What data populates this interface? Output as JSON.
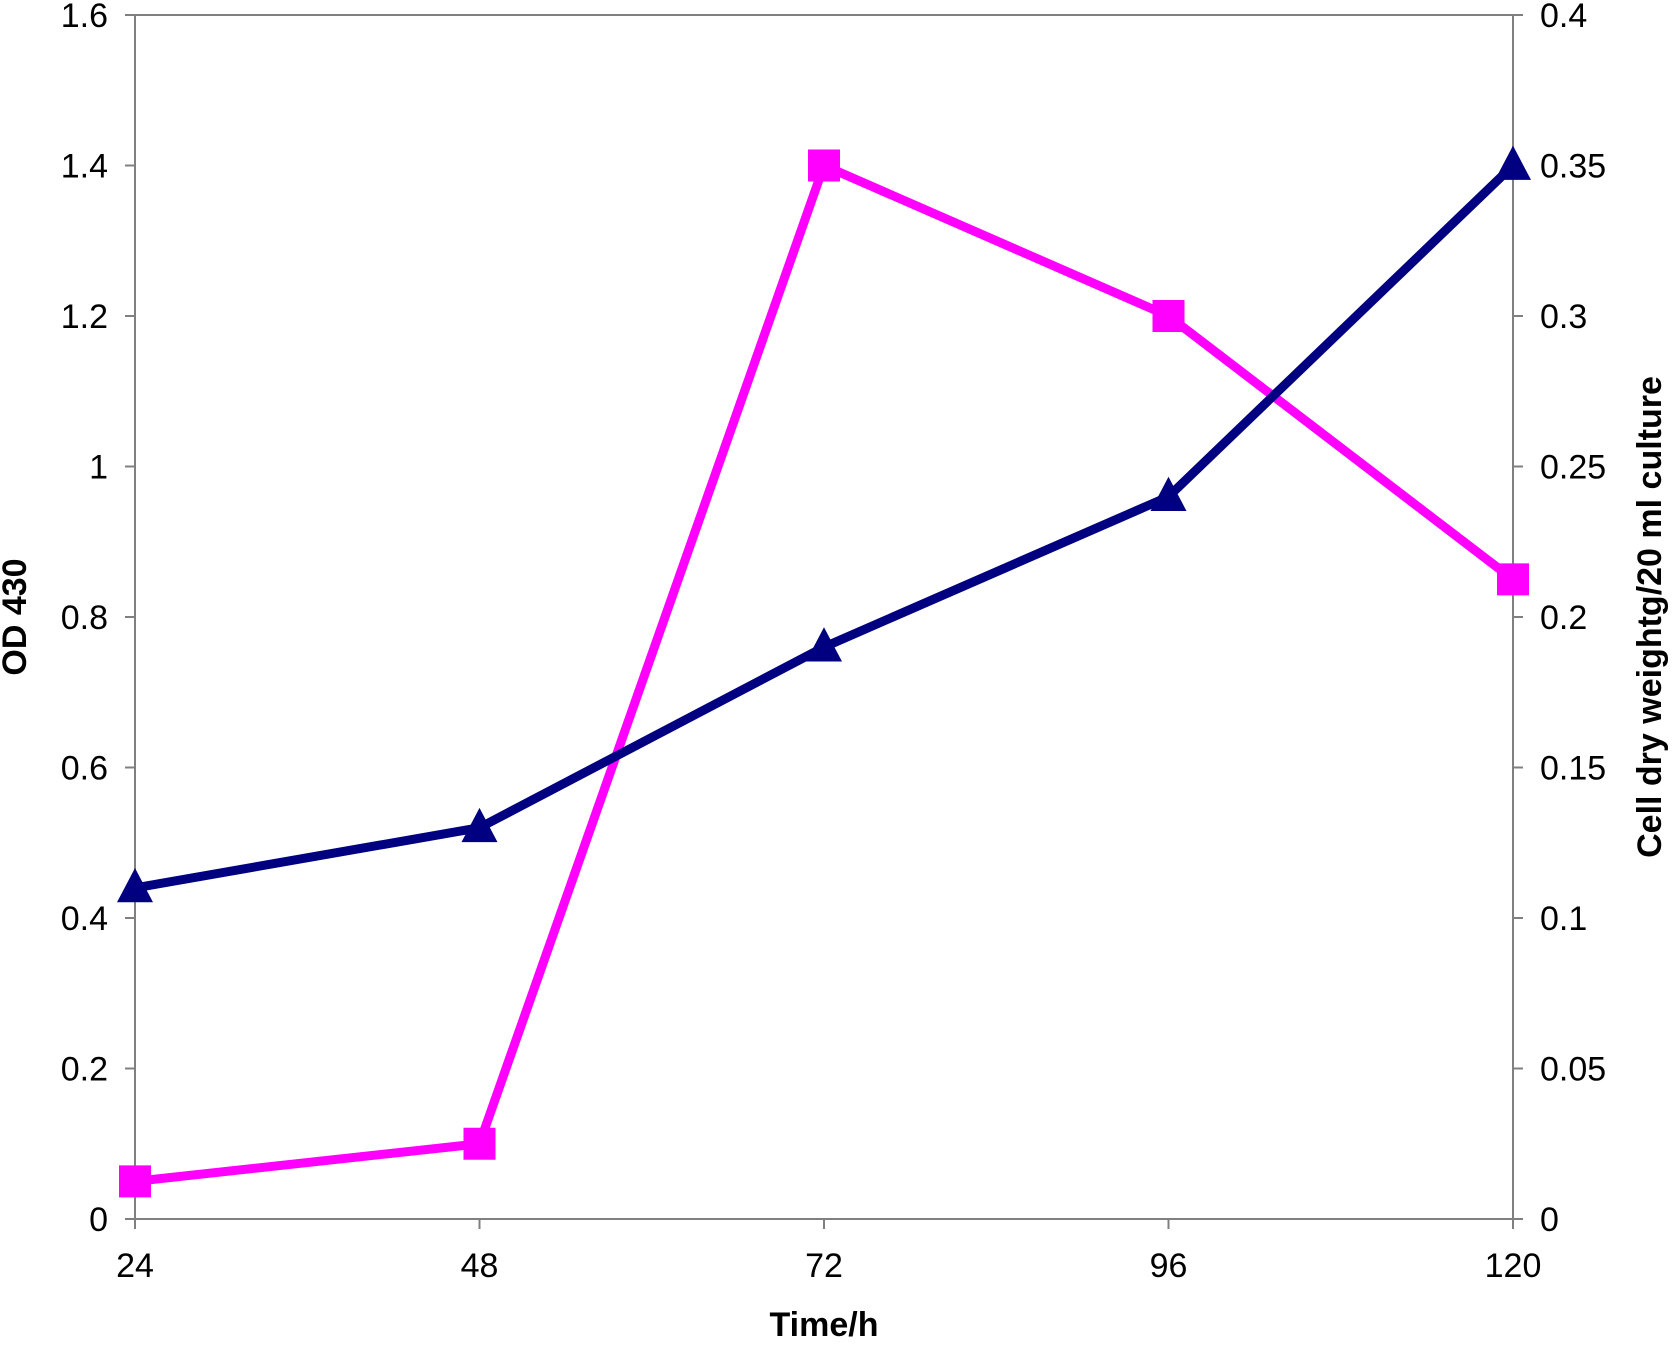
{
  "chart_data": {
    "type": "line",
    "title": "",
    "xlabel": "Time/h",
    "ylabel": "OD 430",
    "y2label": "Cell dry weightg/20 ml culture",
    "x": [
      24,
      48,
      72,
      96,
      120
    ],
    "x_tick_labels": [
      "24",
      "48",
      "72",
      "96",
      "120"
    ],
    "ylim": [
      0,
      1.6
    ],
    "y_tick_labels": [
      "0",
      "0.2",
      "0.4",
      "0.6",
      "0.8",
      "1",
      "1.2",
      "1.4",
      "1.6"
    ],
    "y2lim": [
      0,
      0.4
    ],
    "y2_tick_labels": [
      "0",
      "0.05",
      "0.1",
      "0.15",
      "0.2",
      "0.25",
      "0.3",
      "0.35",
      "0.4"
    ],
    "grid": false,
    "legend": "none",
    "series": [
      {
        "axis": "left",
        "color": "#FF00FF",
        "marker": "square",
        "values": [
          0.05,
          0.1,
          1.4,
          1.2,
          0.85
        ]
      },
      {
        "axis": "right",
        "color": "#000080",
        "marker": "triangle",
        "values": [
          0.11,
          0.13,
          0.19,
          0.24,
          0.35
        ]
      }
    ]
  }
}
